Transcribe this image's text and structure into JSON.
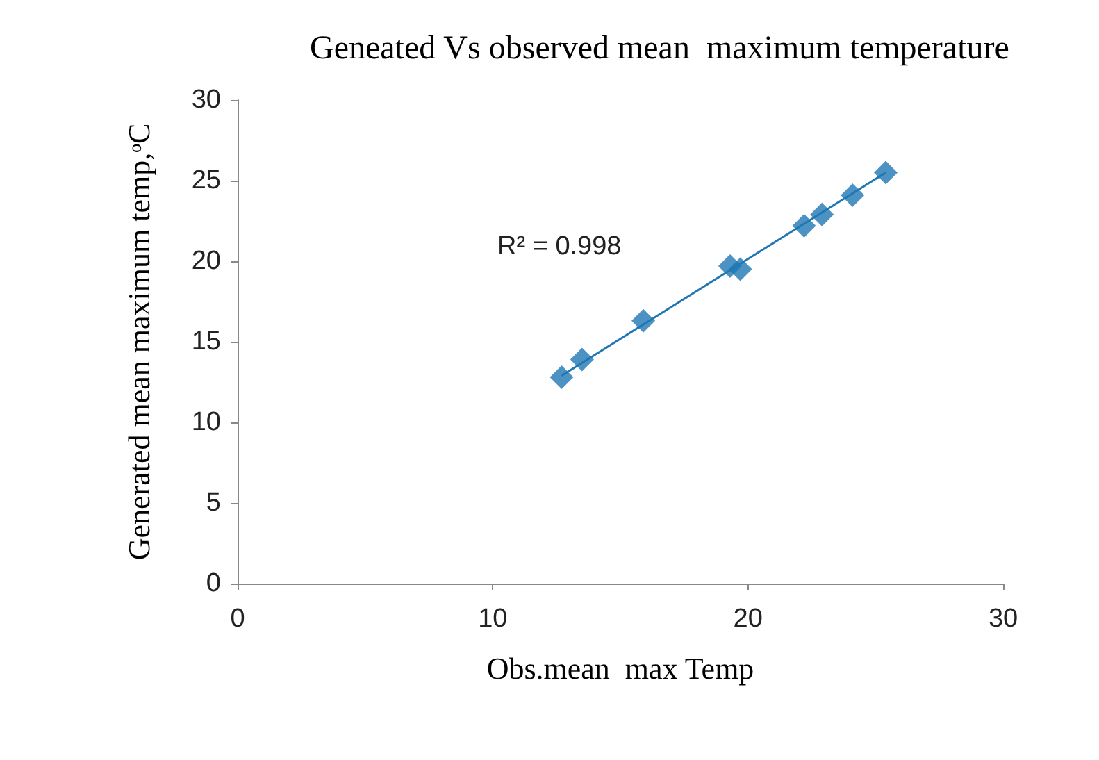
{
  "chart_data": {
    "type": "scatter",
    "title": "Geneated Vs observed mean  maximum temperature",
    "xlabel": "Obs.mean  max Temp",
    "ylabel": "Generated mean maximum temp,ᵒC",
    "annotations": [
      "R² = 0.998"
    ],
    "x": [
      12.7,
      13.5,
      15.9,
      19.3,
      19.7,
      22.2,
      22.9,
      24.1,
      25.4
    ],
    "series": [
      {
        "color": "#1f77b4",
        "values": [
          12.8,
          13.9,
          16.3,
          19.7,
          19.5,
          22.2,
          22.9,
          24.1,
          25.5
        ],
        "marker": "diamond"
      },
      {
        "type": "line",
        "color": "#1f77b4",
        "x": [
          12.7,
          25.4
        ],
        "values": [
          12.9,
          25.5
        ],
        "marker": "none"
      }
    ],
    "xlim": [
      0,
      30
    ],
    "xticks": [
      0,
      10,
      20,
      30
    ],
    "ylim": [
      0,
      30
    ],
    "yticks": [
      0,
      5,
      10,
      15,
      20,
      25,
      30
    ],
    "grid": false
  }
}
